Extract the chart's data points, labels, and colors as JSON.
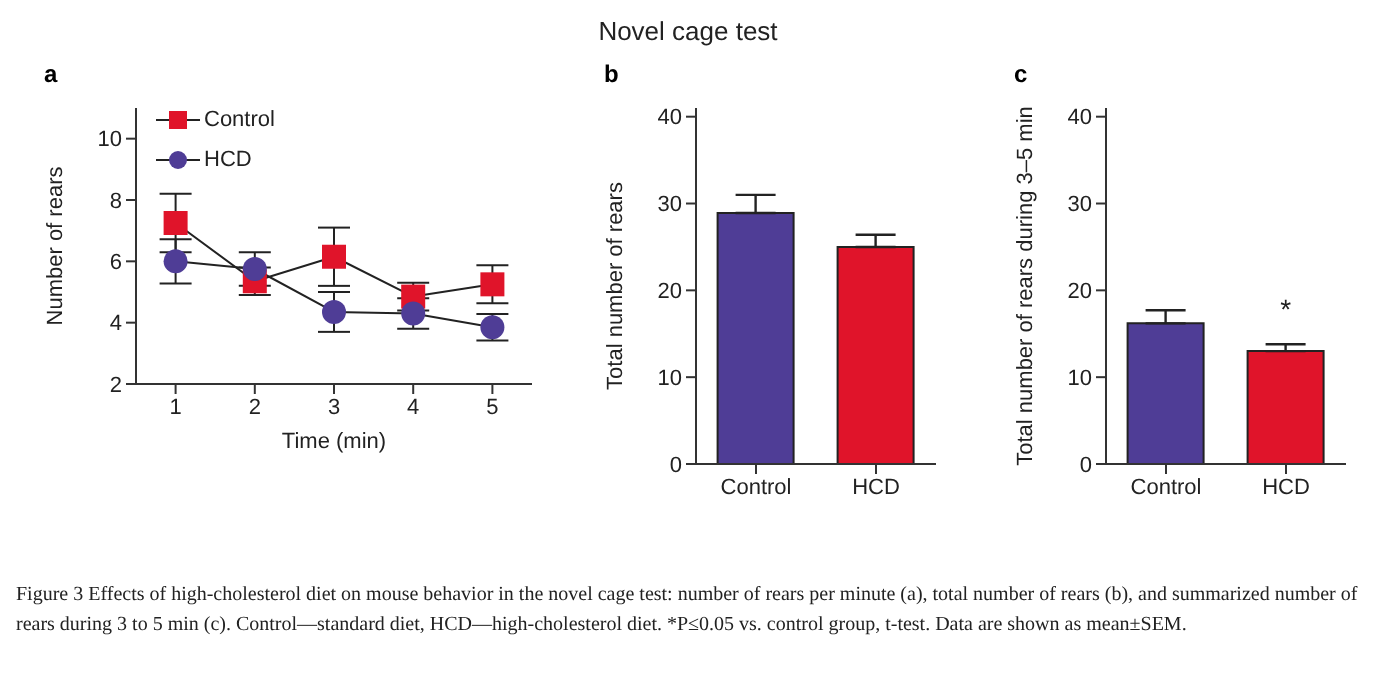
{
  "chart_data": [
    {
      "type": "line",
      "title": "a",
      "xlabel": "Time (min)",
      "ylabel": "Number of rears",
      "x": [
        1,
        2,
        3,
        4,
        5
      ],
      "xlim": [
        0.5,
        5.5
      ],
      "xticks": [
        1,
        2,
        3,
        4,
        5
      ],
      "ylim": [
        2,
        11
      ],
      "yticks": [
        2,
        4,
        6,
        8,
        10
      ],
      "legend": "top left",
      "grid": false,
      "series": [
        {
          "name": "Control",
          "color": "#e0142a",
          "marker": "square",
          "values": [
            7.25,
            5.35,
            6.15,
            4.85,
            5.25
          ],
          "errors": [
            0.95,
            0.45,
            0.95,
            0.45,
            0.62
          ]
        },
        {
          "name": "HCD",
          "color": "#4f3d96",
          "marker": "circle",
          "values": [
            6.0,
            5.75,
            4.35,
            4.3,
            3.85
          ],
          "errors": [
            0.72,
            0.55,
            0.65,
            0.5,
            0.43
          ]
        }
      ],
      "annotations": [
        "Figure 3    Effects of high-cholesterol diet on mouse behavior in the novel cage test: number of rears per minute (a), total number of rears (b), and summarized number of rears during 3 to 5 min (c). Control—standard diet, HCD—high-cholesterol diet. *P≤0.05 vs. control group, t-test. Data are shown as mean±SEM."
      ]
    },
    {
      "type": "bar",
      "title": "b",
      "ylabel": "Total number of rears",
      "categories": [
        "Control",
        "HCD"
      ],
      "values": [
        28.9,
        25.0
      ],
      "errors": [
        2.1,
        1.4
      ],
      "colors": [
        "#4f3d96",
        "#e0142a"
      ],
      "ylim": [
        0,
        41
      ],
      "yticks": [
        0,
        10,
        20,
        30,
        40
      ],
      "grid": false,
      "annotations": [
        "Novel cage test"
      ]
    },
    {
      "type": "bar",
      "title": "c",
      "ylabel": "Total number of rears during 3–5 min",
      "categories": [
        "Control",
        "HCD"
      ],
      "values": [
        16.2,
        13.0
      ],
      "errors": [
        1.5,
        0.8
      ],
      "colors": [
        "#4f3d96",
        "#e0142a"
      ],
      "ylim": [
        0,
        41
      ],
      "yticks": [
        0,
        10,
        20,
        30,
        40
      ],
      "grid": false,
      "value_labels": [
        null,
        "*"
      ]
    }
  ]
}
